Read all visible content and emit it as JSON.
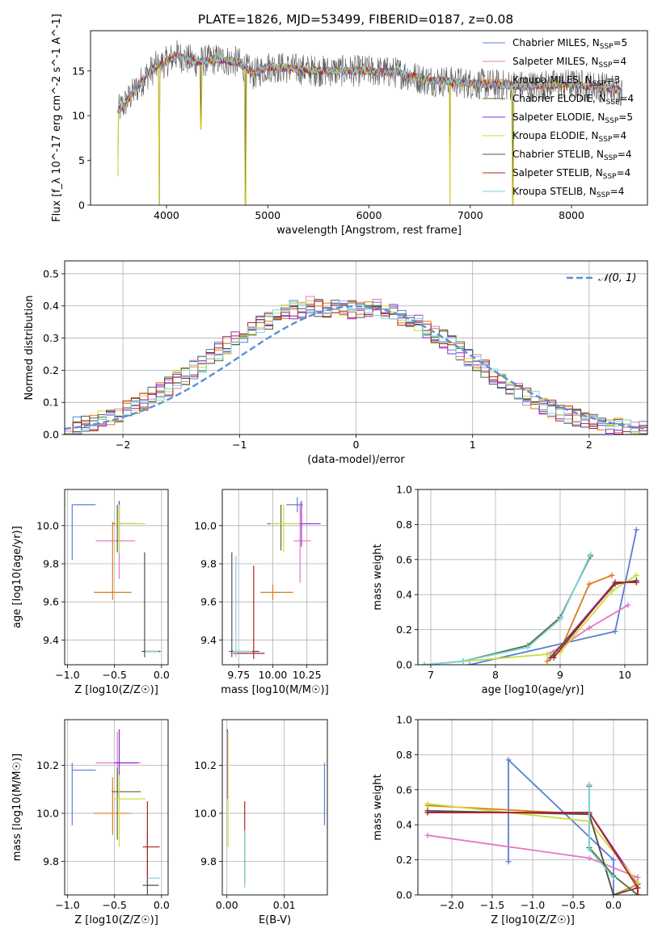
{
  "figure_title": "PLATE=1826, MJD=53499, FIBERID=0187, z=0.08",
  "colors": {
    "c1": "#5b7fd6",
    "c2": "#e377c2",
    "c3": "#e07a1a",
    "c4": "#556b2f",
    "c5": "#8a2be2",
    "c6": "#cddc39",
    "c7": "#505050",
    "c8": "#b22222",
    "c9": "#7ad6e0",
    "grid": "#b0b0b0",
    "gauss": "#5b8fd6"
  },
  "chart_data": [
    {
      "id": "spectrum",
      "type": "line",
      "title": "PLATE=1826, MJD=53499, FIBERID=0187, z=0.08",
      "xlabel": "wavelength [Angstrom, rest frame]",
      "ylabel": "Flux [f_λ 10^-17 erg cm^-2 s^-1 A^-1]",
      "xlim": [
        3250,
        8750
      ],
      "ylim": [
        0,
        19.5
      ],
      "xticks": [
        4000,
        5000,
        6000,
        7000,
        8000
      ],
      "yticks": [
        0,
        5,
        10,
        15
      ],
      "grid": false,
      "legend_loc": "upper-right",
      "legend": [
        {
          "label": "Chabrier MILES, N",
          "sub": "SSP",
          "suffix": "=5",
          "color": "c1"
        },
        {
          "label": "Salpeter MILES, N",
          "sub": "SSP",
          "suffix": "=4",
          "color": "c2"
        },
        {
          "label": "Kroupa MILES, N",
          "sub": "SSP",
          "suffix": "=3",
          "color": "c3"
        },
        {
          "label": "Chabrier ELODIE, N",
          "sub": "SSP",
          "suffix": "=4",
          "color": "c4"
        },
        {
          "label": "Salpeter ELODIE, N",
          "sub": "SSP",
          "suffix": "=5",
          "color": "c5"
        },
        {
          "label": "Kroupa ELODIE, N",
          "sub": "SSP",
          "suffix": "=4",
          "color": "c6"
        },
        {
          "label": "Chabrier STELIB, N",
          "sub": "SSP",
          "suffix": "=4",
          "color": "c7"
        },
        {
          "label": "Salpeter STELIB, N",
          "sub": "SSP",
          "suffix": "=4",
          "color": "c8"
        },
        {
          "label": "Kroupa STELIB, N",
          "sub": "SSP",
          "suffix": "=4",
          "color": "c9"
        }
      ],
      "observed_profile": [
        [
          3520,
          10.5
        ],
        [
          3600,
          11.5
        ],
        [
          3700,
          13.0
        ],
        [
          3800,
          14.5
        ],
        [
          3900,
          15.5
        ],
        [
          4000,
          16.0
        ],
        [
          4100,
          16.8
        ],
        [
          4200,
          16.3
        ],
        [
          4300,
          16.0
        ],
        [
          4500,
          16.3
        ],
        [
          4700,
          16.0
        ],
        [
          4860,
          14.6
        ],
        [
          5000,
          15.5
        ],
        [
          5200,
          15.3
        ],
        [
          5500,
          15.0
        ],
        [
          5800,
          15.0
        ],
        [
          6000,
          15.0
        ],
        [
          6300,
          14.8
        ],
        [
          6563,
          14.0
        ],
        [
          6800,
          13.8
        ],
        [
          7000,
          13.6
        ],
        [
          7300,
          13.4
        ],
        [
          7600,
          13.3
        ],
        [
          8000,
          13.5
        ],
        [
          8300,
          13.2
        ],
        [
          8500,
          12.8
        ]
      ],
      "dips": [
        [
          3520,
          3.3
        ],
        [
          3930,
          0
        ],
        [
          4340,
          8.5
        ],
        [
          4780,
          0
        ],
        [
          6800,
          0
        ],
        [
          7420,
          0
        ]
      ]
    },
    {
      "id": "residuals",
      "type": "histogram",
      "xlabel": "(data-model)/error",
      "ylabel": "Normed distribution",
      "xlim": [
        -2.5,
        2.5
      ],
      "ylim": [
        0,
        0.54
      ],
      "xticks": [
        -2,
        -1,
        0,
        1,
        2
      ],
      "yticks": [
        0.0,
        0.1,
        0.2,
        0.3,
        0.4,
        0.5
      ],
      "grid": true,
      "legend_loc": "upper-right",
      "legend": [
        {
          "label": "𝒩(0, 1)",
          "style": "dashed",
          "color": "gauss"
        }
      ],
      "bin_width": 0.1,
      "base_distribution": [
        0.018,
        0.026,
        0.033,
        0.04,
        0.048,
        0.057,
        0.066,
        0.079,
        0.09,
        0.105,
        0.118,
        0.135,
        0.15,
        0.168,
        0.183,
        0.202,
        0.22,
        0.238,
        0.258,
        0.275,
        0.295,
        0.313,
        0.33,
        0.343,
        0.356,
        0.368,
        0.376,
        0.388,
        0.39,
        0.4,
        0.396,
        0.39,
        0.392,
        0.396,
        0.39,
        0.385,
        0.39,
        0.395,
        0.39,
        0.378,
        0.366,
        0.355,
        0.343,
        0.33,
        0.313,
        0.296,
        0.278,
        0.26,
        0.242,
        0.225,
        0.206,
        0.186,
        0.168,
        0.152,
        0.136,
        0.12,
        0.105,
        0.092,
        0.08,
        0.07,
        0.06,
        0.051,
        0.043,
        0.036,
        0.03,
        0.025,
        0.021,
        0.018,
        0.016,
        0.014
      ]
    },
    {
      "id": "age_vs_Z",
      "type": "errorbar",
      "xlabel": "Z [log10(Z/Z☉)]",
      "ylabel": "age [log10(age/yr)]",
      "xlim": [
        -1.03,
        0.07
      ],
      "ylim": [
        9.27,
        10.19
      ],
      "xticks": [
        -1.0,
        -0.5,
        0.0
      ],
      "yticks": [
        9.4,
        9.6,
        9.8,
        10.0
      ],
      "grid": true,
      "points": [
        {
          "c": "c1",
          "x": -0.95,
          "xerr": [
            0,
            0.25
          ],
          "y": 10.11,
          "yerr": [
            0.29,
            0
          ]
        },
        {
          "c": "c2",
          "x": -0.45,
          "xerr": [
            0.25,
            0.17
          ],
          "y": 9.92,
          "yerr": [
            0.2,
            0.2
          ]
        },
        {
          "c": "c3",
          "x": -0.52,
          "xerr": [
            0.2,
            0.2
          ],
          "y": 9.65,
          "yerr": [
            0.04,
            0.37
          ]
        },
        {
          "c": "c4",
          "x": -0.47,
          "xerr": [
            0.05,
            0.2
          ],
          "y": 10.01,
          "yerr": [
            0.15,
            0.1
          ]
        },
        {
          "c": "c5",
          "x": -0.45,
          "xerr": [
            0.05,
            0.2
          ],
          "y": 10.01,
          "yerr": [
            0.1,
            0.12
          ]
        },
        {
          "c": "c6",
          "x": -0.45,
          "xerr": [
            0.05,
            0.28
          ],
          "y": 10.01,
          "yerr": [
            0.15,
            0.1
          ]
        },
        {
          "c": "c7",
          "x": -0.18,
          "xerr": [
            0.03,
            0.17
          ],
          "y": 9.34,
          "yerr": [
            0.03,
            0.52
          ]
        },
        {
          "c": "c8",
          "x": -0.15,
          "xerr": [
            0.02,
            0.13
          ],
          "y": 9.34,
          "yerr": [
            0,
            0
          ]
        },
        {
          "c": "c9",
          "x": -0.15,
          "xerr": [
            0.02,
            0.12
          ],
          "y": 9.34,
          "yerr": [
            0,
            0
          ]
        }
      ]
    },
    {
      "id": "age_vs_mass",
      "type": "errorbar",
      "xlabel": "mass [log10(M/M☉)]",
      "ylabel": "",
      "xlim": [
        9.63,
        10.4
      ],
      "ylim": [
        9.27,
        10.19
      ],
      "xticks": [
        9.75,
        10.0,
        10.25
      ],
      "yticks": [
        9.4,
        9.6,
        9.8,
        10.0
      ],
      "grid": true,
      "points": [
        {
          "c": "c1",
          "x": 10.18,
          "xerr": [
            0.08,
            0.04
          ],
          "y": 10.11,
          "yerr": [
            0.04,
            0.04
          ]
        },
        {
          "c": "c2",
          "x": 10.2,
          "xerr": [
            0.05,
            0.08
          ],
          "y": 9.92,
          "yerr": [
            0.22,
            0.2
          ]
        },
        {
          "c": "c3",
          "x": 10.0,
          "xerr": [
            0.09,
            0.15
          ],
          "y": 9.65,
          "yerr": [
            0.04,
            0.04
          ]
        },
        {
          "c": "c4",
          "x": 10.06,
          "xerr": [
            0.1,
            0.1
          ],
          "y": 10.01,
          "yerr": [
            0.14,
            0.1
          ]
        },
        {
          "c": "c5",
          "x": 10.21,
          "xerr": [
            0.04,
            0.14
          ],
          "y": 10.01,
          "yerr": [
            0.12,
            0.12
          ]
        },
        {
          "c": "c6",
          "x": 10.08,
          "xerr": [
            0.1,
            0.12
          ],
          "y": 10.01,
          "yerr": [
            0.15,
            0.1
          ]
        },
        {
          "c": "c7",
          "x": 9.7,
          "xerr": [
            0.02,
            0.2
          ],
          "y": 9.34,
          "yerr": [
            0.03,
            0.52
          ]
        },
        {
          "c": "c8",
          "x": 9.86,
          "xerr": [
            0.15,
            0.08
          ],
          "y": 9.33,
          "yerr": [
            0.03,
            0.46
          ]
        },
        {
          "c": "c9",
          "x": 9.73,
          "xerr": [
            0.02,
            0.12
          ],
          "y": 9.34,
          "yerr": [
            0.03,
            0.5
          ]
        }
      ]
    },
    {
      "id": "weight_vs_age",
      "type": "line",
      "xlabel": "age [log10(age/yr)]",
      "ylabel": "mass weight",
      "xlim": [
        6.8,
        10.35
      ],
      "ylim": [
        0,
        1.0
      ],
      "xticks": [
        7,
        8,
        9,
        10
      ],
      "yticks": [
        0.0,
        0.2,
        0.4,
        0.6,
        0.8,
        1.0
      ],
      "grid": true,
      "series": [
        {
          "c": "c1",
          "x": [
            7.6,
            9.85,
            10.18
          ],
          "y": [
            0.0,
            0.19,
            0.77
          ]
        },
        {
          "c": "c2",
          "x": [
            8.8,
            9.0,
            9.45,
            10.05
          ],
          "y": [
            0.06,
            0.1,
            0.21,
            0.34
          ]
        },
        {
          "c": "c3",
          "x": [
            8.8,
            9.0,
            9.45,
            9.8
          ],
          "y": [
            0.02,
            0.08,
            0.46,
            0.51
          ]
        },
        {
          "c": "c4",
          "x": [
            6.9,
            7.5,
            8.5,
            9.0,
            9.47
          ],
          "y": [
            0.0,
            0.02,
            0.11,
            0.27,
            0.62
          ]
        },
        {
          "c": "c5",
          "x": [
            8.9,
            9.85,
            10.18
          ],
          "y": [
            0.06,
            0.47,
            0.47
          ]
        },
        {
          "c": "c6",
          "x": [
            6.9,
            8.8,
            9.0,
            9.8,
            10.18
          ],
          "y": [
            0.0,
            0.06,
            0.07,
            0.42,
            0.51
          ]
        },
        {
          "c": "c7",
          "x": [
            8.85,
            9.85,
            10.18
          ],
          "y": [
            0.04,
            0.46,
            0.48
          ]
        },
        {
          "c": "c8",
          "x": [
            8.9,
            9.85,
            10.18
          ],
          "y": [
            0.04,
            0.47,
            0.47
          ]
        },
        {
          "c": "c9",
          "x": [
            6.9,
            7.5,
            8.5,
            9.0,
            9.47
          ],
          "y": [
            0.0,
            0.02,
            0.1,
            0.26,
            0.63
          ]
        }
      ]
    },
    {
      "id": "mass_vs_Z",
      "type": "errorbar",
      "xlabel": "Z [log10(Z/Z☉)]",
      "ylabel": "mass [log10(M/M☉)]",
      "xlim": [
        -1.03,
        0.07
      ],
      "ylim": [
        9.66,
        10.39
      ],
      "xticks": [
        -1.0,
        -0.5,
        0.0
      ],
      "yticks": [
        9.8,
        10.0,
        10.2
      ],
      "grid": true,
      "points": [
        {
          "c": "c1",
          "x": -0.95,
          "xerr": [
            0,
            0.25
          ],
          "y": 10.18,
          "yerr": [
            0.23,
            0.03
          ]
        },
        {
          "c": "c2",
          "x": -0.47,
          "xerr": [
            0.23,
            0.25
          ],
          "y": 10.21,
          "yerr": [
            0.13,
            0.13
          ]
        },
        {
          "c": "c3",
          "x": -0.52,
          "xerr": [
            0.2,
            0.2
          ],
          "y": 10.0,
          "yerr": [
            0.09,
            0.15
          ]
        },
        {
          "c": "c4",
          "x": -0.47,
          "xerr": [
            0.06,
            0.25
          ],
          "y": 10.09,
          "yerr": [
            0.2,
            0.1
          ]
        },
        {
          "c": "c5",
          "x": -0.45,
          "xerr": [
            0.05,
            0.2
          ],
          "y": 10.21,
          "yerr": [
            0.15,
            0.14
          ]
        },
        {
          "c": "c6",
          "x": -0.45,
          "xerr": [
            0.05,
            0.28
          ],
          "y": 10.06,
          "yerr": [
            0.2,
            0.1
          ]
        },
        {
          "c": "c7",
          "x": -0.15,
          "xerr": [
            0.05,
            0.12
          ],
          "y": 9.7,
          "yerr": [
            0.04,
            0.23
          ]
        },
        {
          "c": "c8",
          "x": -0.15,
          "xerr": [
            0.05,
            0.13
          ],
          "y": 9.86,
          "yerr": [
            0.15,
            0.19
          ]
        },
        {
          "c": "c9",
          "x": -0.15,
          "xerr": [
            0.0,
            0.13
          ],
          "y": 9.73,
          "yerr": [
            0,
            0
          ]
        }
      ]
    },
    {
      "id": "mass_vs_ebv",
      "type": "errorbar",
      "xlabel": "E(B-V)",
      "ylabel": "",
      "xlim": [
        -0.0008,
        0.0175
      ],
      "ylim": [
        9.66,
        10.39
      ],
      "xticks": [
        0.0,
        0.01
      ],
      "yticks": [
        9.8,
        10.0,
        10.2
      ],
      "grid": true,
      "points": [
        {
          "c": "c1",
          "x": 0.017,
          "xerr": [
            0,
            0
          ],
          "y": 10.08,
          "yerr": [
            0.13,
            0.13
          ]
        },
        {
          "c": "c5",
          "x": 0.0001,
          "xerr": [
            0,
            0
          ],
          "y": 10.21,
          "yerr": [
            0.15,
            0.14
          ]
        },
        {
          "c": "c6",
          "x": 0.0002,
          "xerr": [
            0,
            0
          ],
          "y": 10.06,
          "yerr": [
            0.2,
            0.28
          ]
        },
        {
          "c": "c8",
          "x": 0.0031,
          "xerr": [
            0,
            0
          ],
          "y": 9.86,
          "yerr": [
            0.15,
            0.19
          ]
        },
        {
          "c": "c9",
          "x": 0.0031,
          "xerr": [
            0,
            0
          ],
          "y": 9.73,
          "yerr": [
            0.04,
            0.2
          ]
        }
      ]
    },
    {
      "id": "weight_vs_Z",
      "type": "line",
      "xlabel": "Z [log10(Z/Z☉)]",
      "ylabel": "mass weight",
      "xlim": [
        -2.42,
        0.42
      ],
      "ylim": [
        0,
        1.0
      ],
      "xticks": [
        -2.0,
        -1.5,
        -1.0,
        -0.5,
        0.0
      ],
      "yticks": [
        0.0,
        0.2,
        0.4,
        0.6,
        0.8,
        1.0
      ],
      "grid": true,
      "series": [
        {
          "c": "c1",
          "x": [
            -1.3,
            -1.3,
            0.0,
            0.0
          ],
          "y": [
            0.19,
            0.77,
            0.2,
            0.0
          ]
        },
        {
          "c": "c2",
          "x": [
            -2.3,
            -0.3,
            0.3,
            0.3
          ],
          "y": [
            0.34,
            0.21,
            0.1,
            0.0
          ]
        },
        {
          "c": "c3",
          "x": [
            -2.3,
            -0.3,
            0.0,
            0.3
          ],
          "y": [
            0.51,
            0.46,
            0.0,
            0.06
          ]
        },
        {
          "c": "c4",
          "x": [
            -0.3,
            -0.3,
            0.0,
            0.3
          ],
          "y": [
            0.62,
            0.27,
            0.11,
            0.0
          ]
        },
        {
          "c": "c5",
          "x": [
            -2.3,
            -0.3,
            0.3,
            0.3
          ],
          "y": [
            0.47,
            0.47,
            0.06,
            0.0
          ]
        },
        {
          "c": "c6",
          "x": [
            -2.3,
            -0.3,
            0.3,
            0.3
          ],
          "y": [
            0.52,
            0.42,
            0.07,
            0.0
          ]
        },
        {
          "c": "c7",
          "x": [
            -2.3,
            -0.3,
            0.0,
            0.3
          ],
          "y": [
            0.48,
            0.46,
            0.0,
            0.04
          ]
        },
        {
          "c": "c8",
          "x": [
            -2.3,
            -0.3,
            0.3,
            0.3
          ],
          "y": [
            0.47,
            0.47,
            0.04,
            0.0
          ]
        },
        {
          "c": "c9",
          "x": [
            -0.3,
            -0.3,
            0.0
          ],
          "y": [
            0.63,
            0.26,
            0.1
          ]
        }
      ]
    }
  ]
}
